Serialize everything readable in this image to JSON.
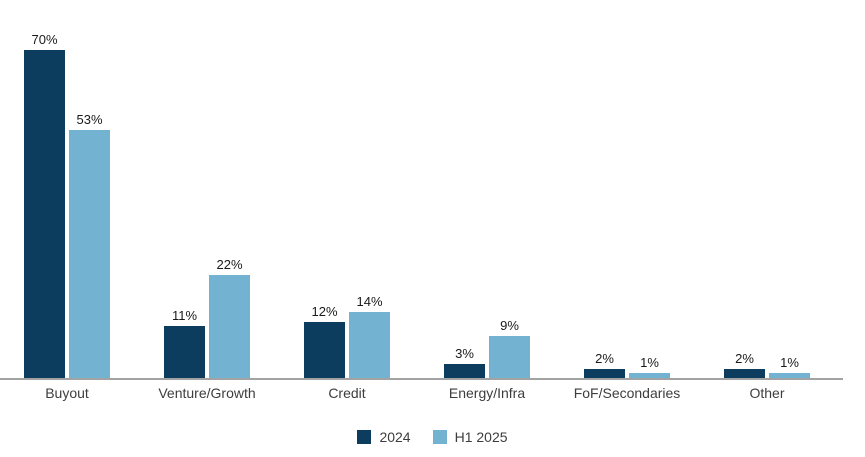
{
  "chart_data": {
    "type": "bar",
    "title": "",
    "xlabel": "",
    "ylabel": "",
    "categories": [
      "Buyout",
      "Venture/Growth",
      "Credit",
      "Energy/Infra",
      "FoF/Secondaries",
      "Other"
    ],
    "series": [
      {
        "name": "2024",
        "color": "#0c3c5e",
        "values": [
          70,
          11,
          12,
          3,
          2,
          2
        ]
      },
      {
        "name": "H1 2025",
        "color": "#74b2d2",
        "values": [
          53,
          22,
          14,
          9,
          1,
          1
        ]
      }
    ],
    "value_labels": [
      [
        "70%",
        "11%",
        "12%",
        "3%",
        "2%",
        "2%"
      ],
      [
        "53%",
        "22%",
        "14%",
        "9%",
        "1%",
        "1%"
      ]
    ],
    "value_suffix": "%",
    "ylim": [
      0,
      75
    ],
    "grid": false,
    "legend_position": "bottom"
  },
  "colors": {
    "background": "#ffffff",
    "axis_line": "#a3a3a3",
    "value_label_text": "#1a1a1a",
    "category_label_text": "#3d3d3d"
  }
}
